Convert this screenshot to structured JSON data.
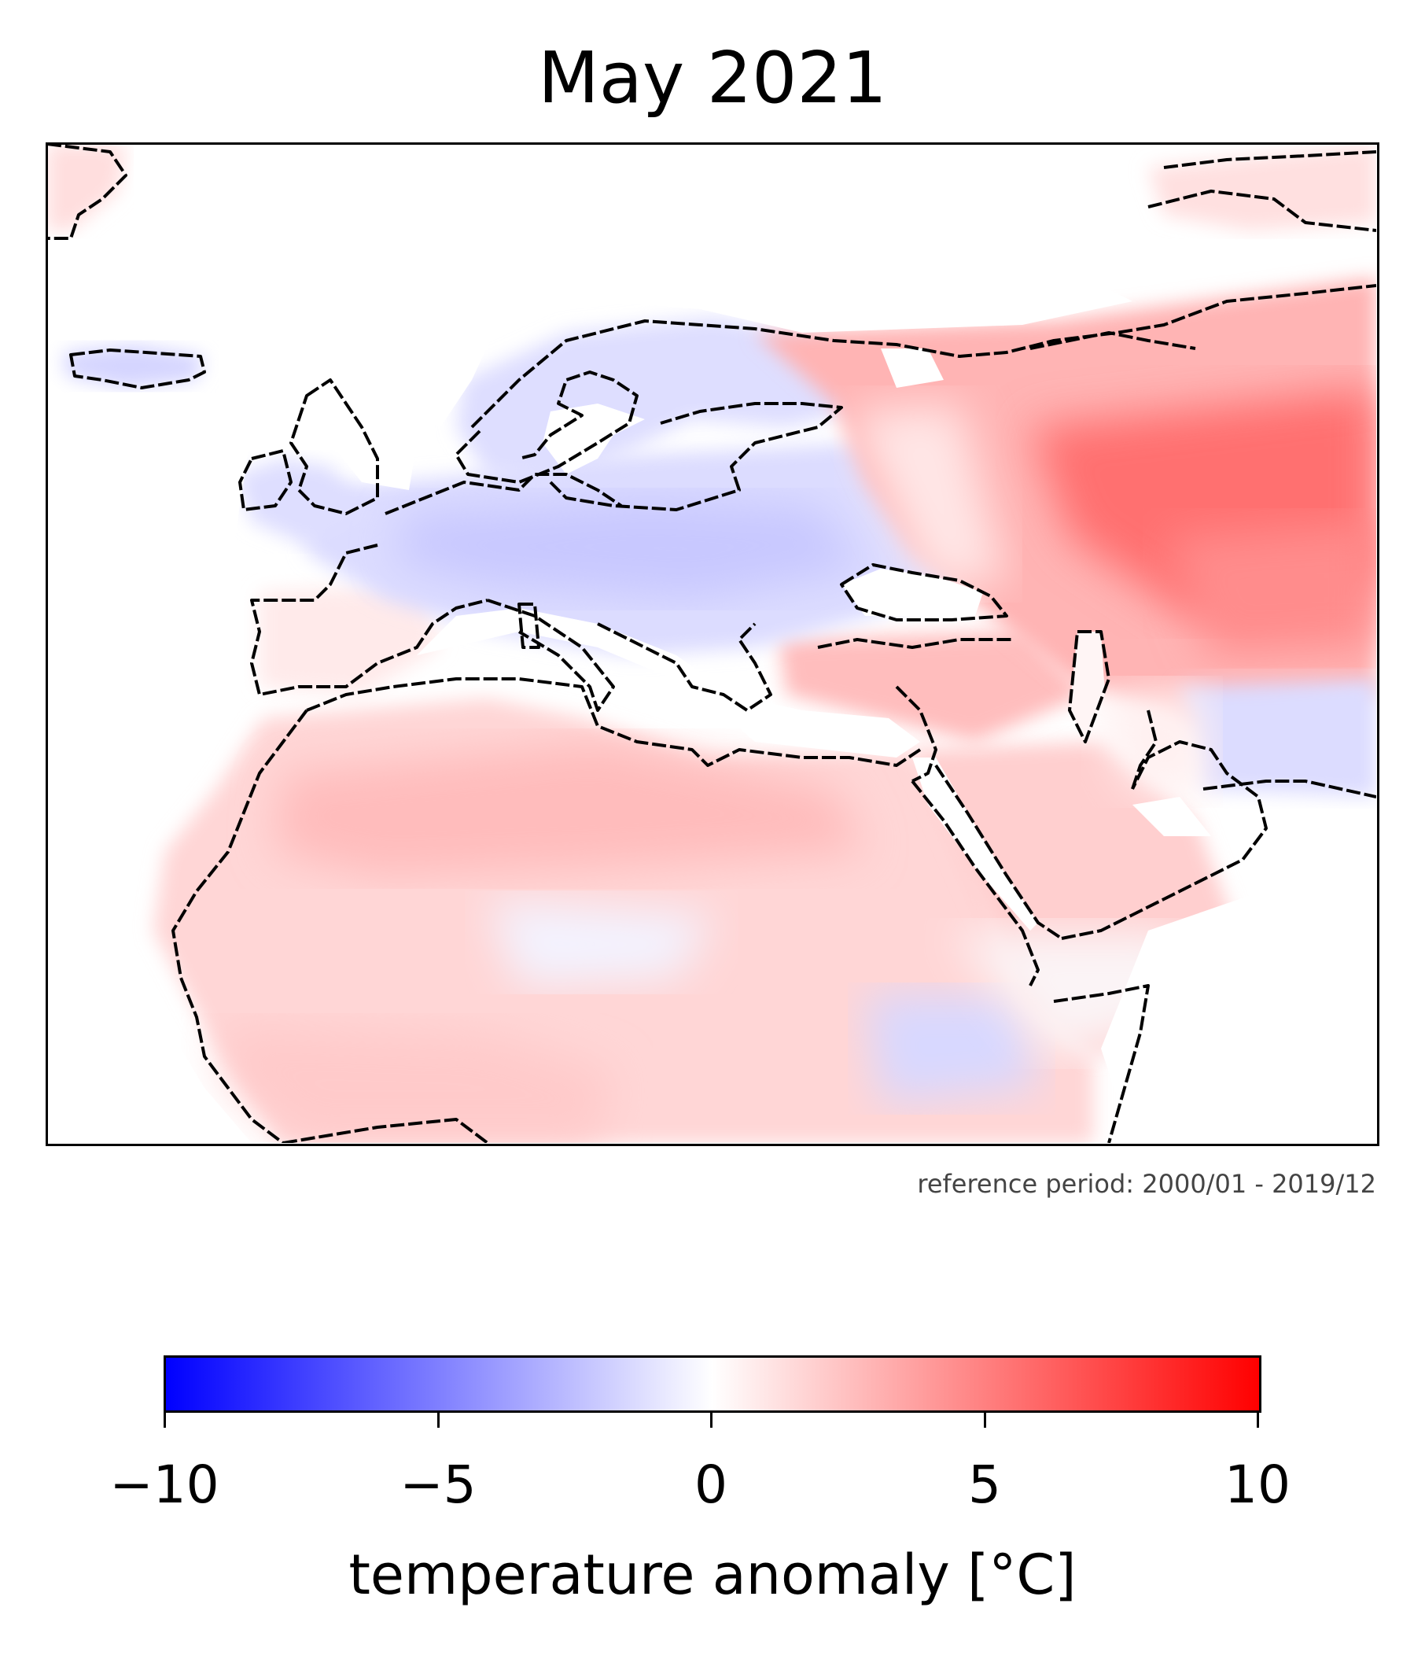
{
  "title": "May 2021",
  "note": "reference period: 2000/01 - 2019/12",
  "colorbar": {
    "label": "temperature anomaly [°C]",
    "min": -10,
    "max": 10,
    "ticks": [
      "−10",
      "−5",
      "0",
      "5",
      "10"
    ],
    "tick_values": [
      -10,
      -5,
      0,
      5,
      10
    ],
    "colors": {
      "low": "#0000ff",
      "mid": "#ffffff",
      "high": "#ff0000"
    },
    "colormap": "bwr"
  },
  "map": {
    "projection": "lat-lon",
    "coastlines": "black",
    "anomaly_regions": [
      {
        "region": "Scandinavia",
        "anomaly": -2
      },
      {
        "region": "Western and central Europe",
        "anomaly": -3
      },
      {
        "region": "Iceland",
        "anomaly": -2
      },
      {
        "region": "Western Russia / Kazakhstan",
        "anomaly": 5
      },
      {
        "region": "Northern Africa (Sahara)",
        "anomaly": 2
      },
      {
        "region": "Middle East / Turkey",
        "anomaly": 3
      },
      {
        "region": "Central Asia south",
        "anomaly": -2
      },
      {
        "region": "Sudan / Ethiopia",
        "anomaly": -1.5
      }
    ]
  }
}
